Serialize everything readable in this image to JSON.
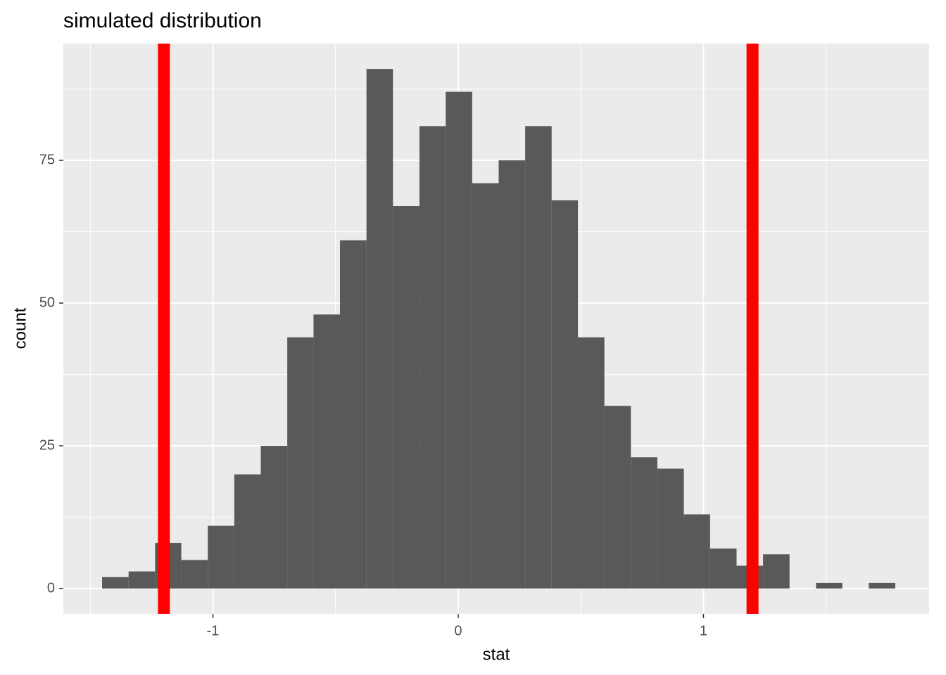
{
  "chart_data": {
    "type": "histogram",
    "title": "simulated distribution",
    "x_label": "stat",
    "y_label": "count",
    "bins": [
      -1.452,
      -1.344,
      -1.236,
      -1.129,
      -1.021,
      -0.913,
      -0.805,
      -0.697,
      -0.59,
      -0.482,
      -0.374,
      -0.266,
      -0.158,
      -0.051,
      0.057,
      0.165,
      0.273,
      0.381,
      0.488,
      0.596,
      0.704,
      0.812,
      0.92,
      1.027,
      1.135,
      1.243,
      1.351,
      1.459,
      1.566,
      1.674,
      1.782
    ],
    "values": [
      2,
      3,
      8,
      5,
      11,
      20,
      25,
      44,
      48,
      61,
      91,
      67,
      81,
      87,
      71,
      75,
      81,
      68,
      44,
      32,
      23,
      21,
      13,
      7,
      4,
      6,
      0,
      1,
      0,
      1
    ],
    "color": "#595959",
    "vlines": [
      {
        "value": -1.2,
        "color": "#ff0000"
      },
      {
        "value": 1.2,
        "color": "#ff0000"
      }
    ],
    "xlim": [
      -1.61,
      1.92
    ],
    "ylim": [
      -4.43,
      95.45
    ],
    "xticks": [
      -1,
      0,
      1
    ],
    "yticks": [
      0,
      25,
      50,
      75
    ],
    "grid": true
  }
}
